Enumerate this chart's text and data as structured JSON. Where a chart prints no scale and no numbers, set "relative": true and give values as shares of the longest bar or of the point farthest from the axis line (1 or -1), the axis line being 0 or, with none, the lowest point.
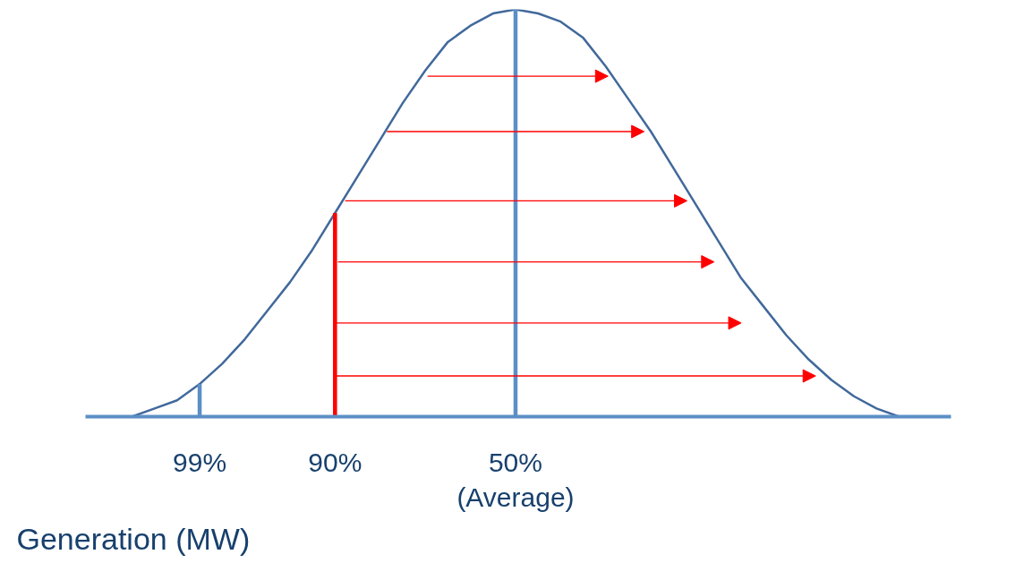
{
  "chart_data": {
    "type": "line",
    "relative": true,
    "xlabel": "Generation (MW)",
    "categories": [
      null,
      null,
      null,
      "99%",
      null,
      null,
      null,
      null,
      null,
      "90%",
      null,
      null,
      null,
      null,
      null,
      null,
      null,
      "50%\n(Average)",
      null,
      null,
      null,
      null,
      null,
      null,
      null,
      null,
      null,
      null,
      null,
      null,
      null,
      null,
      null,
      null,
      null
    ],
    "series": [
      {
        "color": "#41699b",
        "values": [
          0.0,
          0.02,
          0.04,
          0.08,
          0.13,
          0.19,
          0.26,
          0.33,
          0.41,
          0.5,
          0.59,
          0.68,
          0.77,
          0.85,
          0.92,
          0.96,
          0.99,
          1.0,
          0.99,
          0.97,
          0.93,
          0.86,
          0.78,
          0.7,
          0.61,
          0.52,
          0.43,
          0.34,
          0.27,
          0.2,
          0.14,
          0.09,
          0.05,
          0.02,
          0.0
        ]
      },
      {
        "type": "bar",
        "colors": [
          null,
          null,
          null,
          "#5b8fc7",
          null,
          null,
          null,
          null,
          null,
          "#ff0000",
          null,
          null,
          null,
          null,
          null,
          null,
          null,
          "#5b8fc7",
          null,
          null,
          null,
          null,
          null,
          null,
          null,
          null,
          null,
          null,
          null,
          null,
          null,
          null,
          null,
          null,
          null
        ],
        "values": [
          null,
          null,
          null,
          0.08,
          null,
          null,
          null,
          null,
          null,
          0.5,
          null,
          null,
          null,
          null,
          null,
          null,
          null,
          1.0,
          null,
          null,
          null,
          null,
          null,
          null,
          null,
          null,
          null,
          null,
          null,
          null,
          null,
          null,
          null,
          null,
          null
        ]
      }
    ],
    "grid": false,
    "marker": "none",
    "line_style": "solid"
  }
}
